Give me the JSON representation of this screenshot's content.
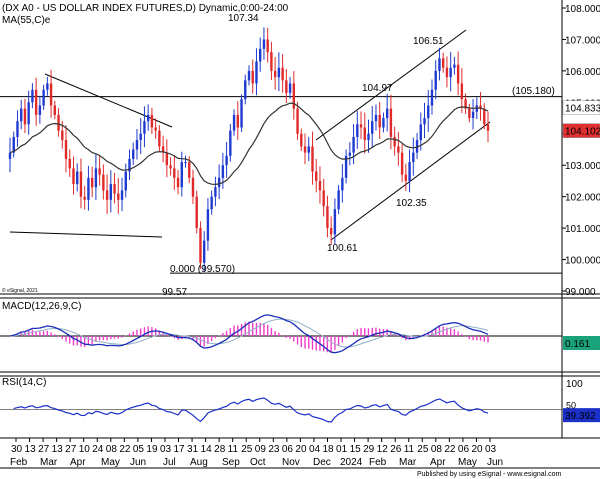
{
  "header": {
    "main_title": "(DX A0 - US DOLLAR INDEX FUTURES,D) Dynamic,0:00-24:00",
    "ma_label": "MA(55,C)e",
    "copyright": "© eSignal, 2021"
  },
  "macd": {
    "label": "MACD(12,26,9,C)",
    "value_tag": "0.161"
  },
  "rsi": {
    "label": "RSI(14,C)",
    "value_tag": "39.392"
  },
  "footer": {
    "publisher": "Published by using eSignal - www.esignal.com"
  },
  "chart_data": [
    {
      "type": "candlestick",
      "title": "(DX A0 - US DOLLAR INDEX FUTURES,D) Dynamic,0:00-24:00",
      "ylim": [
        99,
        108
      ],
      "yticks": [
        "108.000",
        "107.000",
        "106.000",
        "105.000",
        "104.000",
        "103.000",
        "102.000",
        "101.000",
        "100.000",
        "99.000"
      ],
      "price_tags": [
        {
          "label": "104.833",
          "value": 104.83,
          "color": "#ffffff"
        },
        {
          "label": "104.102",
          "value": 104.1,
          "color": "#e03030"
        }
      ],
      "horizontal_line": {
        "value": 105.18,
        "label": "(105.180)"
      },
      "fib_line": {
        "label": "0.000 (99.570)",
        "value": 99.57
      },
      "annotations": [
        {
          "text": "107.34",
          "value": 107.34
        },
        {
          "text": "106.51",
          "value": 106.51
        },
        {
          "text": "104.97",
          "value": 104.97
        },
        {
          "text": "102.35",
          "value": 102.35
        },
        {
          "text": "100.61",
          "value": 100.61
        },
        {
          "text": "99.57",
          "value": 99.57
        }
      ],
      "series": [
        {
          "name": "DX A0",
          "close": [
            103.4,
            103.9,
            104.4,
            104.8,
            104.3,
            105.0,
            105.4,
            104.6,
            104.9,
            105.4,
            105.6,
            104.9,
            104.6,
            104.1,
            103.8,
            103.2,
            102.9,
            102.4,
            102.8,
            102.0,
            101.9,
            102.6,
            102.3,
            102.9,
            102.7,
            102.2,
            101.9,
            102.4,
            102.1,
            101.9,
            102.2,
            102.8,
            103.2,
            103.5,
            103.8,
            104.0,
            104.4,
            104.6,
            104.2,
            104.1,
            103.6,
            103.4,
            103.0,
            102.9,
            102.6,
            102.3,
            103.1,
            103.1,
            102.6,
            102.0,
            101.0,
            99.9,
            100.6,
            101.6,
            102.0,
            102.3,
            102.6,
            103.0,
            103.3,
            104.1,
            104.6,
            104.2,
            105.1,
            105.7,
            106.0,
            105.6,
            106.3,
            106.7,
            107.0,
            106.6,
            106.0,
            105.8,
            106.1,
            105.7,
            105.3,
            105.6,
            104.8,
            104.0,
            103.6,
            103.4,
            103.6,
            102.8,
            102.5,
            102.2,
            101.7,
            101.0,
            100.8,
            101.6,
            102.2,
            102.6,
            103.3,
            103.4,
            103.9,
            104.3,
            104.2,
            103.8,
            104.0,
            104.4,
            104.6,
            104.2,
            104.5,
            104.8,
            103.9,
            103.6,
            103.4,
            102.7,
            102.5,
            103.1,
            103.4,
            103.8,
            104.3,
            104.5,
            104.9,
            105.4,
            106.0,
            106.4,
            106.1,
            105.8,
            106.1,
            106.2,
            105.6,
            105.1,
            104.8,
            104.5,
            104.7,
            104.9,
            104.8,
            104.3,
            104.1
          ]
        },
        {
          "name": "MA(55,C)e",
          "values": []
        }
      ]
    },
    {
      "type": "line",
      "title": "MACD(12,26,9,C)",
      "ylim": [
        -1.6,
        1.6
      ],
      "series": [
        {
          "name": "MACD",
          "values": []
        },
        {
          "name": "Signal",
          "values": []
        }
      ]
    },
    {
      "type": "line",
      "title": "RSI(14,C)",
      "ylim": [
        0,
        100
      ],
      "yticks": [
        "100",
        "50"
      ],
      "series": [
        {
          "name": "RSI",
          "values": []
        }
      ]
    }
  ],
  "x_axis": {
    "days": [
      "30",
      "13",
      "27",
      "13",
      "27",
      "10",
      "24",
      "08",
      "22",
      "05",
      "19",
      "03",
      "17",
      "31",
      "14",
      "28",
      "11",
      "25",
      "09",
      "23",
      "06",
      "20",
      "04",
      "18",
      "01",
      "15",
      "29",
      "12",
      "26",
      "11",
      "25",
      "08",
      "22",
      "06",
      "20",
      "03"
    ],
    "months": [
      "Feb",
      "Mar",
      "Apr",
      "May",
      "Jun",
      "Jul",
      "Aug",
      "Sep",
      "Oct",
      "Nov",
      "Dec",
      "2024",
      "Feb",
      "Mar",
      "Apr",
      "May",
      "Jun"
    ]
  },
  "colors": {
    "up": "#1e3ad0",
    "down": "#e02a2a",
    "ma": "#333333",
    "macd": "#1b2fb8",
    "signal": "#8fb0c8",
    "hist": "#f03cc8",
    "rsi": "#1a30c8",
    "tag_red": "#e03030"
  }
}
